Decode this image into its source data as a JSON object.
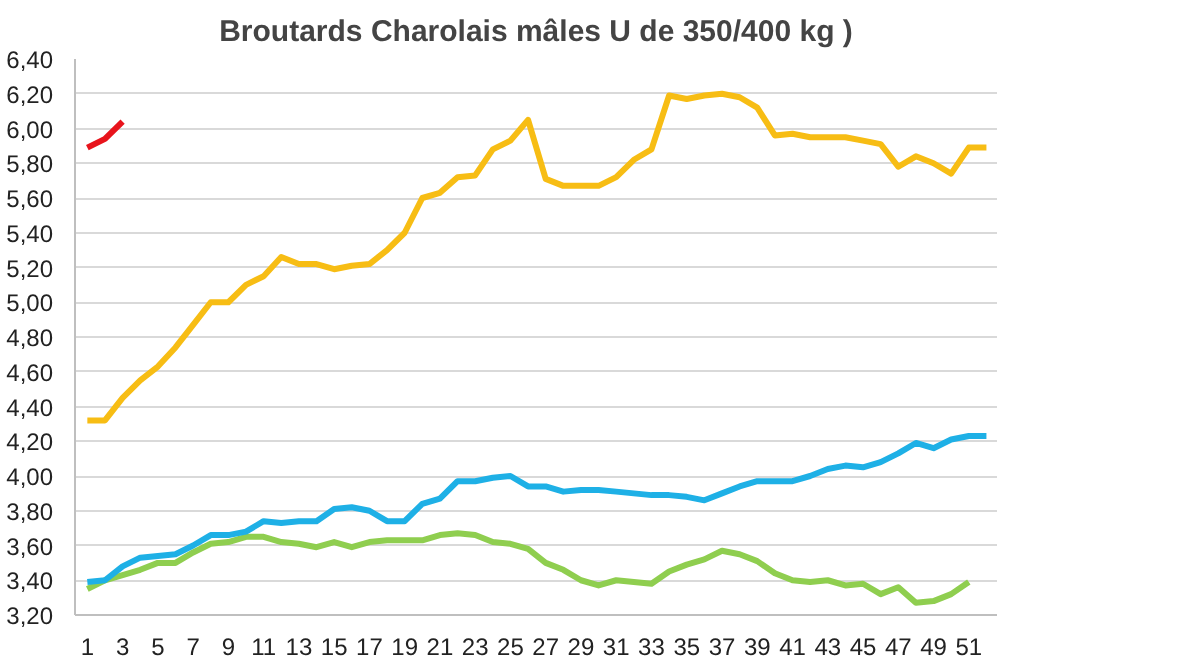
{
  "chart_data": {
    "type": "line",
    "title": "Broutards Charolais mâles U de 350/400 kg )",
    "x": [
      1,
      2,
      3,
      4,
      5,
      6,
      7,
      8,
      9,
      10,
      11,
      12,
      13,
      14,
      15,
      16,
      17,
      18,
      19,
      20,
      21,
      22,
      23,
      24,
      25,
      26,
      27,
      28,
      29,
      30,
      31,
      32,
      33,
      34,
      35,
      36,
      37,
      38,
      39,
      40,
      41,
      42,
      43,
      44,
      45,
      46,
      47,
      48,
      49,
      50,
      51,
      52
    ],
    "series": [
      {
        "color": "#8fce4f",
        "values": [
          3.35,
          3.4,
          3.43,
          3.46,
          3.5,
          3.5,
          3.56,
          3.61,
          3.62,
          3.65,
          3.65,
          3.62,
          3.61,
          3.59,
          3.62,
          3.59,
          3.62,
          3.63,
          3.63,
          3.63,
          3.66,
          3.67,
          3.66,
          3.62,
          3.61,
          3.58,
          3.5,
          3.46,
          3.4,
          3.37,
          3.4,
          3.39,
          3.38,
          3.45,
          3.49,
          3.52,
          3.57,
          3.55,
          3.51,
          3.44,
          3.4,
          3.39,
          3.4,
          3.37,
          3.38,
          3.32,
          3.36,
          3.27,
          3.28,
          3.32,
          3.39,
          null
        ]
      },
      {
        "color": "#1eb0e6",
        "values": [
          3.39,
          3.4,
          3.48,
          3.53,
          3.54,
          3.55,
          3.6,
          3.66,
          3.66,
          3.68,
          3.74,
          3.73,
          3.74,
          3.74,
          3.81,
          3.82,
          3.8,
          3.74,
          3.74,
          3.84,
          3.87,
          3.97,
          3.97,
          3.99,
          4.0,
          3.94,
          3.94,
          3.91,
          3.92,
          3.92,
          3.91,
          3.9,
          3.89,
          3.89,
          3.88,
          3.86,
          3.9,
          3.94,
          3.97,
          3.97,
          3.97,
          4.0,
          4.04,
          4.06,
          4.05,
          4.08,
          4.13,
          4.19,
          4.16,
          4.21,
          4.23,
          4.23
        ]
      },
      {
        "color": "#f7bd14",
        "values": [
          4.32,
          4.32,
          4.45,
          4.55,
          4.63,
          4.74,
          4.87,
          5.0,
          5.0,
          5.1,
          5.15,
          5.26,
          5.22,
          5.22,
          5.19,
          5.21,
          5.22,
          5.3,
          5.4,
          5.6,
          5.63,
          5.72,
          5.73,
          5.88,
          5.93,
          6.05,
          5.71,
          5.67,
          5.67,
          5.67,
          5.72,
          5.82,
          5.88,
          6.19,
          6.17,
          6.19,
          6.2,
          6.18,
          6.12,
          5.96,
          5.97,
          5.95,
          5.95,
          5.95,
          5.93,
          5.91,
          5.78,
          5.84,
          5.8,
          5.74,
          5.89,
          5.89
        ]
      },
      {
        "color": "#e8141c",
        "values": [
          5.89,
          5.94,
          6.04,
          null,
          null,
          null,
          null,
          null,
          null,
          null,
          null,
          null,
          null,
          null,
          null,
          null,
          null,
          null,
          null,
          null,
          null,
          null,
          null,
          null,
          null,
          null,
          null,
          null,
          null,
          null,
          null,
          null,
          null,
          null,
          null,
          null,
          null,
          null,
          null,
          null,
          null,
          null,
          null,
          null,
          null,
          null,
          null,
          null,
          null,
          null,
          null,
          null
        ]
      }
    ],
    "xlim": [
      0.3,
      52.6
    ],
    "xticks": [
      1,
      3,
      5,
      7,
      9,
      11,
      13,
      15,
      17,
      19,
      21,
      23,
      25,
      27,
      29,
      31,
      33,
      35,
      37,
      39,
      41,
      43,
      45,
      47,
      49,
      51
    ],
    "ylim": [
      3.2,
      6.4
    ],
    "yticks": [
      {
        "value": 3.2,
        "label": "3,20"
      },
      {
        "value": 3.4,
        "label": "3,40"
      },
      {
        "value": 3.6,
        "label": "3,60"
      },
      {
        "value": 3.8,
        "label": "3,80"
      },
      {
        "value": 4.0,
        "label": "4,00"
      },
      {
        "value": 4.2,
        "label": "4,20"
      },
      {
        "value": 4.4,
        "label": "4,40"
      },
      {
        "value": 4.6,
        "label": "4,60"
      },
      {
        "value": 4.8,
        "label": "4,80"
      },
      {
        "value": 5.0,
        "label": "5,00"
      },
      {
        "value": 5.2,
        "label": "5,20"
      },
      {
        "value": 5.4,
        "label": "5,40"
      },
      {
        "value": 5.6,
        "label": "5,60"
      },
      {
        "value": 5.8,
        "label": "5,80"
      },
      {
        "value": 6.0,
        "label": "6,00"
      },
      {
        "value": 6.2,
        "label": "6,20"
      },
      {
        "value": 6.4,
        "label": "6,40"
      }
    ],
    "grid": "y",
    "marker": "none",
    "line_style": "solid"
  }
}
